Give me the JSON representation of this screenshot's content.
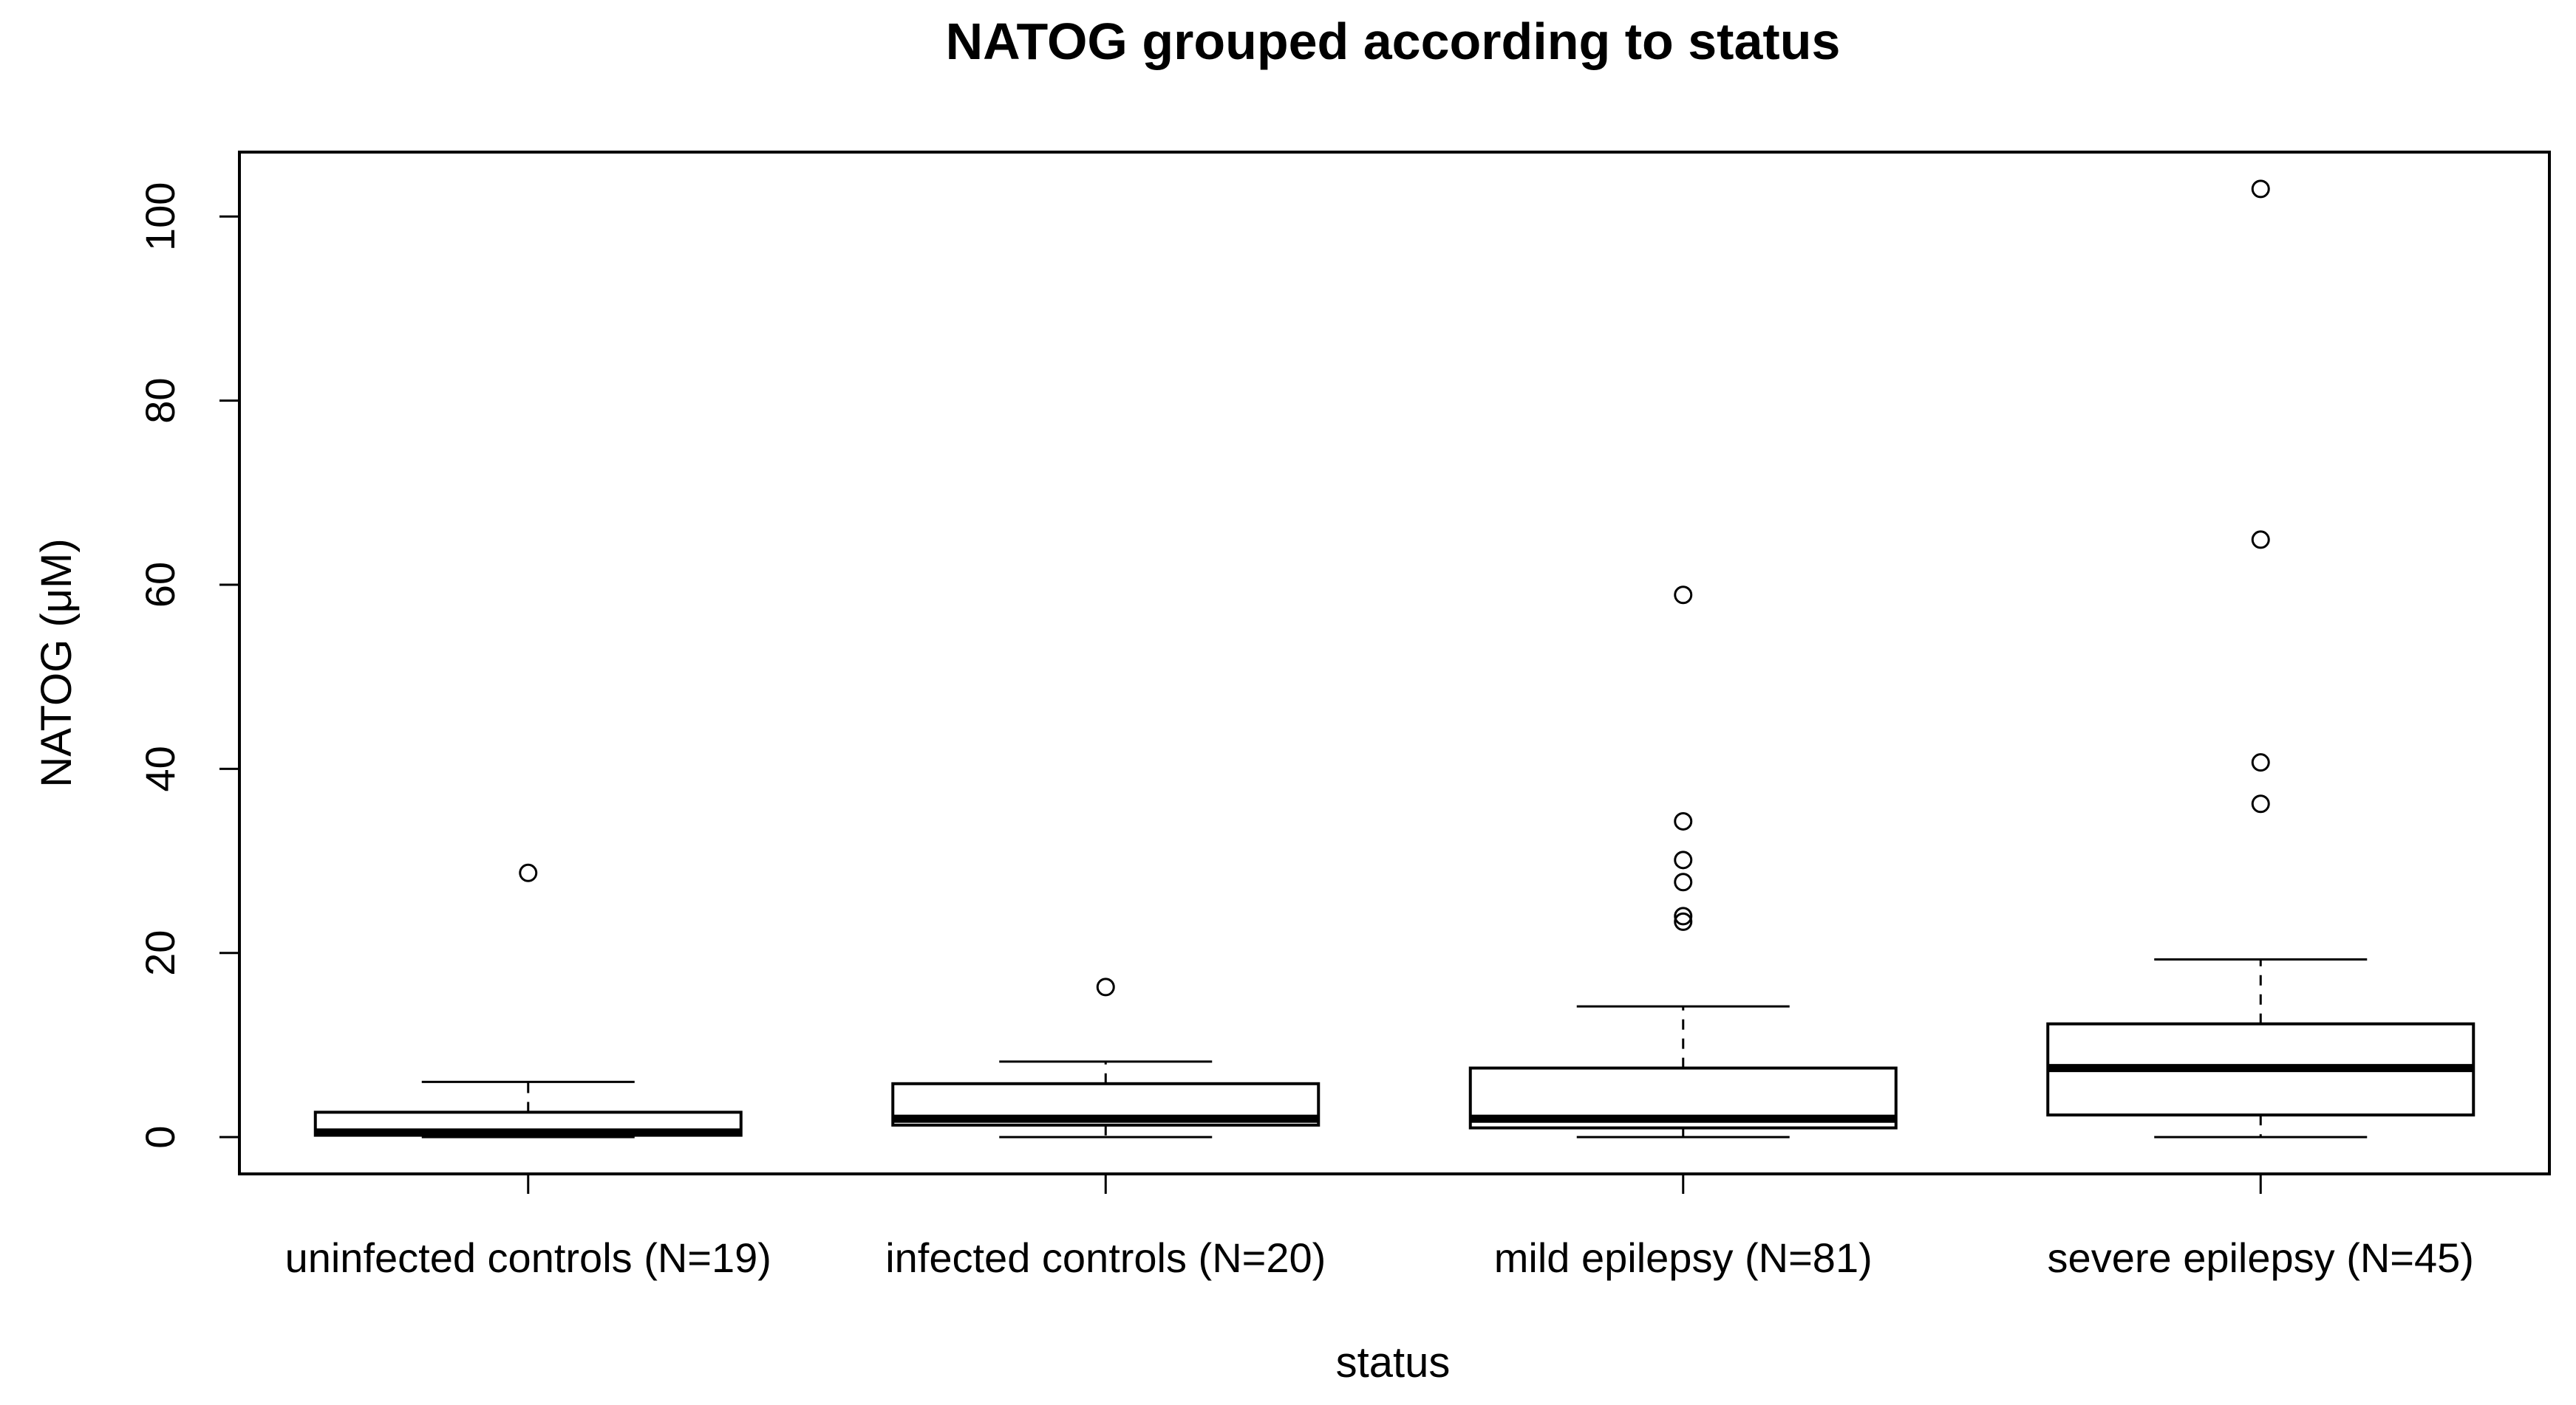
{
  "chart_data": {
    "type": "boxplot",
    "title": "NATOG grouped according to status",
    "xlabel": "status",
    "ylabel": "NATOG (μM)",
    "ylim": [
      -4,
      107
    ],
    "yticks": [
      0,
      20,
      40,
      60,
      80,
      100
    ],
    "grid": false,
    "groups": [
      {
        "label": "uninfected controls (N=19)",
        "min": 0,
        "q1": 0.2,
        "median": 0.5,
        "q3": 2.7,
        "max": 6,
        "outliers": [
          28.7
        ]
      },
      {
        "label": "infected controls (N=20)",
        "min": 0,
        "q1": 1.3,
        "median": 2,
        "q3": 5.8,
        "max": 8.2,
        "outliers": [
          16.3
        ]
      },
      {
        "label": "mild epilepsy (N=81)",
        "min": 0,
        "q1": 1,
        "median": 2,
        "q3": 7.5,
        "max": 14.2,
        "outliers": [
          23.4,
          24,
          27.7,
          30.1,
          34.3,
          58.9
        ]
      },
      {
        "label": "severe epilepsy (N=45)",
        "min": 0,
        "q1": 2.4,
        "median": 7.5,
        "q3": 12.3,
        "max": 19.3,
        "outliers": [
          36.2,
          40.7,
          64.9,
          103
        ]
      }
    ]
  }
}
